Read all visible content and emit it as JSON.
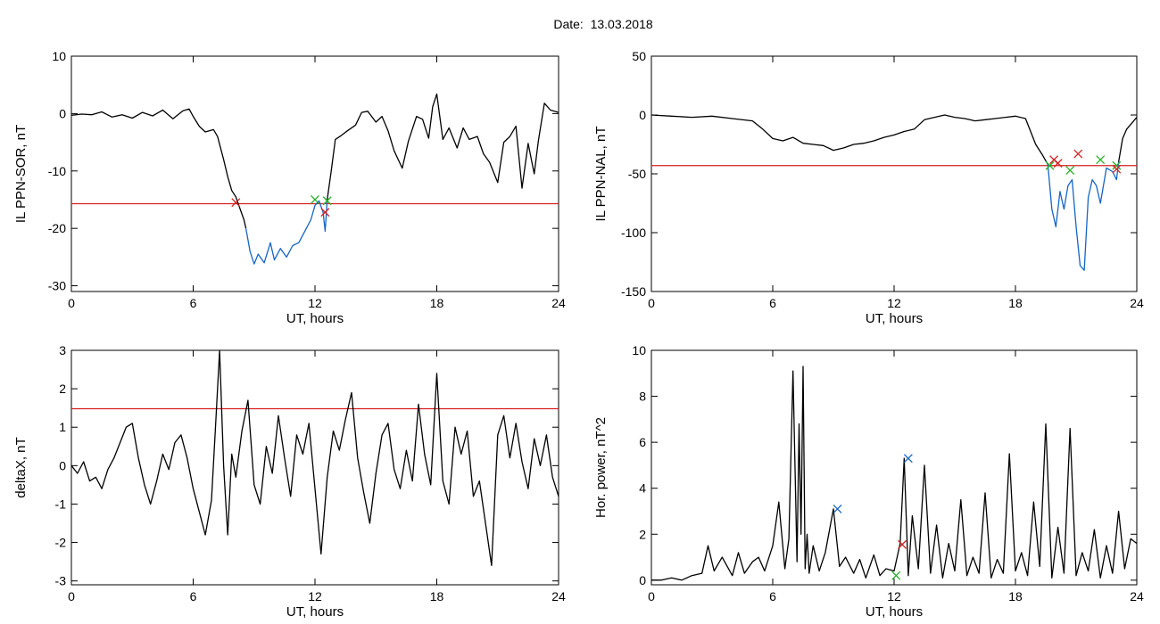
{
  "header": {
    "date_label": "Date:",
    "date_value": "13.03.2018"
  },
  "chart_data": [
    {
      "id": "p1",
      "type": "line",
      "xlabel": "UT, hours",
      "ylabel": "IL PPN-SOR, nT",
      "xlim": [
        0,
        24
      ],
      "ylim": [
        -31,
        10
      ],
      "xticks": [
        0,
        6,
        12,
        18,
        24
      ],
      "yticks": [
        10,
        0,
        -10,
        -20,
        -30
      ],
      "threshold": -15.7,
      "series": [
        {
          "color": "#000000",
          "x": [
            0,
            0.5,
            1,
            1.5,
            2,
            2.5,
            3,
            3.5,
            4,
            4.5,
            5,
            5.5,
            5.8,
            6,
            6.3,
            6.6,
            7,
            7.2,
            7.5,
            7.7,
            7.9,
            8.1,
            8.3,
            8.5,
            8.6
          ],
          "y": [
            -0.3,
            -0.1,
            -0.2,
            0.3,
            -0.6,
            -0.2,
            -0.8,
            0.2,
            -0.4,
            0.6,
            -0.9,
            0.5,
            0.8,
            -0.5,
            -2.2,
            -3.2,
            -2.8,
            -4.0,
            -8.0,
            -11.0,
            -13.4,
            -14.5,
            -16.5,
            -18.5,
            -20.0
          ]
        },
        {
          "color": "#1565c8",
          "x": [
            8.6,
            8.8,
            9.0,
            9.2,
            9.5,
            9.8,
            10,
            10.3,
            10.6,
            10.9,
            11.2,
            11.5,
            11.8,
            12.0,
            12.2,
            12.4,
            12.5,
            12.6
          ],
          "y": [
            -20,
            -24,
            -26.2,
            -24.5,
            -26.0,
            -22.5,
            -25.5,
            -23.5,
            -25.0,
            -23.0,
            -22.5,
            -20.5,
            -18.5,
            -16.0,
            -15.2,
            -17.2,
            -20.5,
            -15.0
          ]
        },
        {
          "color": "#000000",
          "x": [
            12.6,
            12.8,
            13,
            13.3,
            13.6,
            14,
            14.3,
            14.6,
            15,
            15.3,
            15.6,
            15.9,
            16.3,
            16.6,
            17,
            17.3,
            17.6,
            17.8,
            18,
            18.3,
            18.6,
            19,
            19.3,
            19.6,
            20,
            20.3,
            20.6,
            21,
            21.3,
            21.6,
            21.9,
            22.2,
            22.5,
            22.8,
            23,
            23.3,
            23.6,
            24
          ],
          "y": [
            -15,
            -10,
            -4.5,
            -3.8,
            -3.0,
            -2.0,
            0.2,
            0.4,
            -1.5,
            -0.5,
            -3.0,
            -6.5,
            -9.5,
            -4.8,
            -0.5,
            -1.0,
            -4.3,
            1.2,
            3.4,
            -4.5,
            -2.5,
            -6.0,
            -2.5,
            -4.5,
            -4.0,
            -7.0,
            -8.5,
            -12.0,
            -5.0,
            -4.0,
            -2.2,
            -13.0,
            -5.2,
            -10.5,
            -4.8,
            1.8,
            0.6,
            0.2
          ]
        }
      ],
      "markers": [
        {
          "x": 8.1,
          "y": -15.5,
          "color": "#d62020"
        },
        {
          "x": 12.0,
          "y": -15.0,
          "color": "#26b026"
        },
        {
          "x": 12.6,
          "y": -15.2,
          "color": "#26b026"
        },
        {
          "x": 12.5,
          "y": -17.2,
          "color": "#d62020"
        }
      ]
    },
    {
      "id": "p2",
      "type": "line",
      "xlabel": "UT, hours",
      "ylabel": "IL PPN-NAL, nT",
      "xlim": [
        0,
        24
      ],
      "ylim": [
        -150,
        50
      ],
      "xticks": [
        0,
        6,
        12,
        18,
        24
      ],
      "yticks": [
        50,
        0,
        -50,
        -100,
        -150
      ],
      "threshold": -43,
      "series": [
        {
          "color": "#000000",
          "x": [
            0,
            1,
            2,
            3,
            4,
            5,
            5.5,
            6,
            6.5,
            7,
            7.5,
            8,
            8.5,
            9,
            9.5,
            10,
            10.5,
            11,
            11.5,
            12,
            12.5,
            13,
            13.5,
            14,
            14.5,
            15,
            15.5,
            16,
            16.5,
            17,
            17.5,
            18,
            18.5,
            19,
            19.3,
            19.6
          ],
          "y": [
            0,
            -1,
            -2,
            -1,
            -3,
            -5,
            -12,
            -20,
            -22,
            -19,
            -24,
            -25,
            -26,
            -30,
            -28,
            -25,
            -24,
            -22,
            -19,
            -17,
            -14,
            -12,
            -4,
            -2,
            0,
            -2,
            -3,
            -5,
            -4,
            -3,
            -2,
            -1,
            -3,
            -25,
            -33,
            -42
          ]
        },
        {
          "color": "#1565c8",
          "x": [
            19.6,
            19.8,
            20.0,
            20.2,
            20.4,
            20.6,
            20.8,
            21.0,
            21.2,
            21.4,
            21.6,
            21.8,
            22.0,
            22.2,
            22.5,
            22.8,
            23.0,
            23.1
          ],
          "y": [
            -42,
            -80,
            -95,
            -65,
            -80,
            -60,
            -55,
            -95,
            -128,
            -132,
            -70,
            -55,
            -60,
            -75,
            -45,
            -48,
            -55,
            -40
          ]
        },
        {
          "color": "#000000",
          "x": [
            23.1,
            23.3,
            23.5,
            23.7,
            24
          ],
          "y": [
            -40,
            -20,
            -12,
            -8,
            -2
          ]
        }
      ],
      "markers": [
        {
          "x": 19.7,
          "y": -43,
          "color": "#26b026"
        },
        {
          "x": 19.9,
          "y": -38,
          "color": "#d62020"
        },
        {
          "x": 20.1,
          "y": -41,
          "color": "#d62020"
        },
        {
          "x": 20.7,
          "y": -47,
          "color": "#26b026"
        },
        {
          "x": 21.1,
          "y": -33,
          "color": "#d62020"
        },
        {
          "x": 22.2,
          "y": -38,
          "color": "#26b026"
        },
        {
          "x": 23.0,
          "y": -43,
          "color": "#26b026"
        },
        {
          "x": 23.0,
          "y": -46,
          "color": "#d62020"
        }
      ]
    },
    {
      "id": "p3",
      "type": "line",
      "xlabel": "UT, hours",
      "ylabel": "deltaX, nT",
      "xlim": [
        0,
        24
      ],
      "ylim": [
        -3.1,
        3
      ],
      "xticks": [
        0,
        6,
        12,
        18,
        24
      ],
      "yticks": [
        3,
        2,
        1,
        0,
        -1,
        -2,
        -3
      ],
      "threshold": 1.48,
      "series": [
        {
          "color": "#000000",
          "x": [
            0,
            0.3,
            0.6,
            0.9,
            1.2,
            1.5,
            1.8,
            2.1,
            2.4,
            2.7,
            3,
            3.3,
            3.6,
            3.9,
            4.2,
            4.5,
            4.8,
            5.1,
            5.4,
            5.7,
            6,
            6.3,
            6.6,
            6.9,
            7.1,
            7.3,
            7.5,
            7.7,
            7.9,
            8.1,
            8.4,
            8.7,
            9,
            9.3,
            9.6,
            9.9,
            10.2,
            10.5,
            10.8,
            11.1,
            11.4,
            11.7,
            12,
            12.3,
            12.6,
            12.9,
            13.2,
            13.5,
            13.8,
            14.1,
            14.4,
            14.7,
            15,
            15.3,
            15.6,
            15.9,
            16.2,
            16.5,
            16.8,
            17.1,
            17.4,
            17.7,
            18,
            18.3,
            18.6,
            18.9,
            19.2,
            19.5,
            19.8,
            20.1,
            20.4,
            20.7,
            21,
            21.3,
            21.6,
            21.9,
            22.2,
            22.5,
            22.8,
            23.1,
            23.4,
            23.7,
            24
          ],
          "y": [
            0,
            -0.2,
            0.1,
            -0.4,
            -0.3,
            -0.6,
            -0.1,
            0.2,
            0.6,
            1.0,
            1.1,
            0.2,
            -0.5,
            -1.0,
            -0.4,
            0.3,
            -0.1,
            0.6,
            0.8,
            0.2,
            -0.6,
            -1.2,
            -1.8,
            -0.9,
            1.0,
            3.0,
            0.0,
            -1.8,
            0.3,
            -0.3,
            0.9,
            1.7,
            -0.5,
            -1.0,
            0.5,
            -0.2,
            1.3,
            0.2,
            -0.8,
            0.8,
            0.3,
            1.1,
            -0.6,
            -2.3,
            -0.3,
            0.9,
            0.4,
            1.2,
            1.9,
            0.2,
            -0.7,
            -1.5,
            -0.2,
            0.8,
            1.1,
            -0.1,
            -0.6,
            0.4,
            -0.4,
            1.6,
            0.3,
            -0.5,
            2.4,
            -0.4,
            -1.0,
            1.0,
            0.3,
            0.9,
            -0.8,
            -0.4,
            -1.5,
            -2.6,
            0.8,
            1.3,
            0.2,
            1.1,
            0.1,
            -0.6,
            0.7,
            0.0,
            0.8,
            -0.3,
            -0.8
          ]
        }
      ],
      "markers": []
    },
    {
      "id": "p4",
      "type": "line",
      "xlabel": "UT, hours",
      "ylabel": "Hor. power, nT^2",
      "xlim": [
        0,
        24
      ],
      "ylim": [
        -0.2,
        10
      ],
      "xticks": [
        0,
        6,
        12,
        18,
        24
      ],
      "yticks": [
        10,
        8,
        6,
        4,
        2,
        0
      ],
      "threshold": null,
      "series": [
        {
          "color": "#000000",
          "x": [
            0,
            0.5,
            1,
            1.5,
            2,
            2.5,
            2.8,
            3.1,
            3.5,
            4,
            4.3,
            4.6,
            5,
            5.3,
            5.6,
            6,
            6.3,
            6.6,
            6.8,
            7,
            7.2,
            7.3,
            7.4,
            7.5,
            7.6,
            7.7,
            7.8,
            8,
            8.3,
            8.6,
            9,
            9.3,
            9.6,
            10,
            10.3,
            10.6,
            11,
            11.3,
            11.6,
            12,
            12.3,
            12.5,
            12.7,
            12.9,
            13.2,
            13.5,
            13.8,
            14.1,
            14.4,
            14.7,
            15,
            15.3,
            15.6,
            15.9,
            16.2,
            16.5,
            16.8,
            17.1,
            17.4,
            17.7,
            18,
            18.3,
            18.6,
            18.9,
            19.2,
            19.5,
            19.8,
            20.1,
            20.4,
            20.7,
            21,
            21.3,
            21.6,
            21.9,
            22.2,
            22.5,
            22.8,
            23.1,
            23.4,
            23.7,
            24
          ],
          "y": [
            0,
            0,
            0.1,
            0,
            0.2,
            0.3,
            1.5,
            0.4,
            1.0,
            0.2,
            1.2,
            0.3,
            0.8,
            1.0,
            0.4,
            1.5,
            3.4,
            0.5,
            1.8,
            9.1,
            0.8,
            6.8,
            2.0,
            9.3,
            0.5,
            2.0,
            0.3,
            1.5,
            0.4,
            1.2,
            3.1,
            0.6,
            1.0,
            0.3,
            0.9,
            0.1,
            1.1,
            0.2,
            0.5,
            0.4,
            1.6,
            5.3,
            0.2,
            2.8,
            0.5,
            5.0,
            0.3,
            2.4,
            0.1,
            1.6,
            0.4,
            3.5,
            0.2,
            1.0,
            0.3,
            3.8,
            0.1,
            0.9,
            0.3,
            5.5,
            0.4,
            1.2,
            0.2,
            3.4,
            0.6,
            6.8,
            0.1,
            2.3,
            0.3,
            6.6,
            0.2,
            1.2,
            0.4,
            2.2,
            0.1,
            1.5,
            0.3,
            3.0,
            0.5,
            1.8,
            1.6
          ]
        }
      ],
      "markers": [
        {
          "x": 9.2,
          "y": 3.1,
          "color": "#1565c8"
        },
        {
          "x": 12.7,
          "y": 5.3,
          "color": "#1565c8"
        },
        {
          "x": 12.4,
          "y": 1.55,
          "color": "#d62020"
        },
        {
          "x": 12.1,
          "y": 0.2,
          "color": "#26b026"
        }
      ]
    }
  ]
}
